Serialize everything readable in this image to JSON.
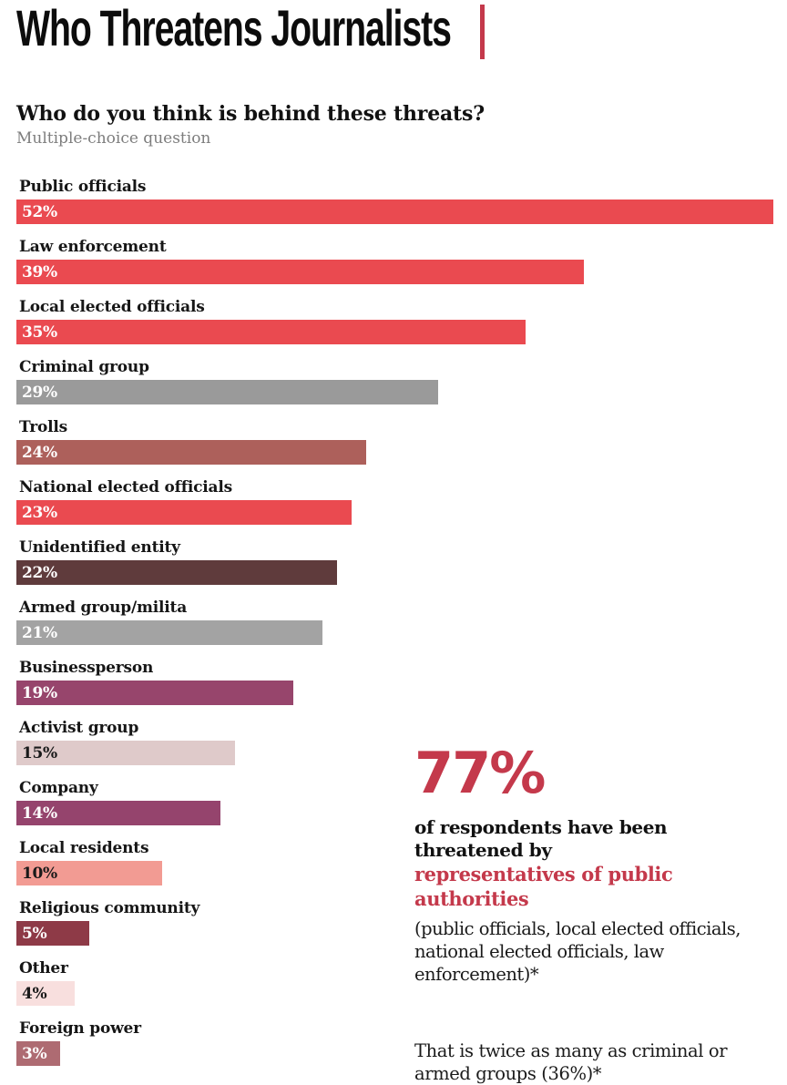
{
  "header": {
    "title": "Who Threatens Journalists",
    "question": "Who do you think is behind these threats?",
    "note": "Multiple-choice question"
  },
  "chart_data": {
    "type": "bar",
    "orientation": "horizontal",
    "title": "Who do you think is behind these threats?",
    "subtitle": "Multiple-choice question",
    "xlim": [
      0,
      52
    ],
    "grid": false,
    "legend": false,
    "categories": [
      "Public officials",
      "Law enforcement",
      "Local elected officials",
      "Criminal group",
      "Trolls",
      "National elected officials",
      "Unidentified entity",
      "Armed group/milita",
      "Businessperson",
      "Activist group",
      "Company",
      "Local residents",
      "Religious community",
      "Other",
      "Foreign power"
    ],
    "values": [
      52,
      39,
      35,
      29,
      24,
      23,
      22,
      21,
      19,
      15,
      14,
      10,
      5,
      4,
      3
    ],
    "value_labels": [
      "52%",
      "39%",
      "35%",
      "29%",
      "24%",
      "23%",
      "22%",
      "21%",
      "19%",
      "15%",
      "14%",
      "10%",
      "5%",
      "4%",
      "3%"
    ],
    "bar_colors": [
      "#EA4A50",
      "#EA4A50",
      "#EA4A50",
      "#9A9A9A",
      "#AD605B",
      "#EA4A50",
      "#5F3B3C",
      "#A3A3A3",
      "#97456C",
      "#DFCACA",
      "#95446D",
      "#F29B93",
      "#8E3A47",
      "#F8DFDE",
      "#AE6B72"
    ],
    "value_label_colors": [
      "#FFFFFF",
      "#FFFFFF",
      "#FFFFFF",
      "#FFFFFF",
      "#FFFFFF",
      "#FFFFFF",
      "#FFFFFF",
      "#FFFFFF",
      "#FFFFFF",
      "#1a1a1a",
      "#FFFFFF",
      "#1a1a1a",
      "#FFFFFF",
      "#1a1a1a",
      "#FFFFFF"
    ]
  },
  "callout": {
    "stat": "77%",
    "bold_line": "of respondents have been threatened by",
    "red_line": "representatives of public authorities",
    "paren_text": "(public officials, local elected officials, national elected officials, law enforcement)*",
    "note_text": "That is twice as many as criminal or armed groups (36%)*"
  },
  "colors": {
    "accent_red": "#C4394B",
    "bar_red": "#EA4A50",
    "text_dark": "#161616",
    "note_gray": "#7d7d7d"
  }
}
